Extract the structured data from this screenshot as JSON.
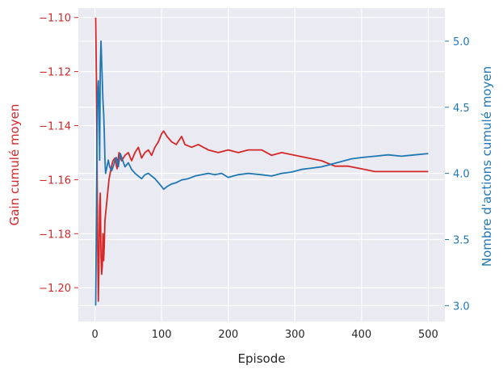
{
  "chart_data": {
    "type": "line",
    "title": "",
    "xlabel": "Episode",
    "ylabel_left": "Gain cumulé moyen",
    "ylabel_right": "Nombre d'actions cumulé moyen",
    "xlim": [
      -25,
      525
    ],
    "ylim_left": [
      -1.2125,
      -1.0965
    ],
    "ylim_right": [
      2.88,
      5.25
    ],
    "grid": true,
    "x_ticks": [
      0,
      100,
      200,
      300,
      400,
      500
    ],
    "x_tick_labels": [
      "0",
      "100",
      "200",
      "300",
      "400",
      "500"
    ],
    "left_ticks": [
      -1.1,
      -1.12,
      -1.14,
      -1.16,
      -1.18,
      -1.2
    ],
    "left_tick_labels": [
      "−1.10",
      "−1.12",
      "−1.14",
      "−1.16",
      "−1.18",
      "−1.20"
    ],
    "right_ticks": [
      3.0,
      3.5,
      4.0,
      4.5,
      5.0
    ],
    "right_tick_labels": [
      "3.0",
      "3.5",
      "4.0",
      "4.5",
      "5.0"
    ],
    "colors": {
      "left_series": "#d62728",
      "right_series": "#1f77b4",
      "plot_bg": "#eaeaf2",
      "grid": "#ffffff",
      "tick_text": "#262626"
    },
    "series": [
      {
        "axis": "left",
        "color": "#d62728",
        "points": [
          [
            1,
            -1.1
          ],
          [
            2,
            -1.12
          ],
          [
            3,
            -1.15
          ],
          [
            4,
            -1.182
          ],
          [
            5,
            -1.205
          ],
          [
            6,
            -1.19
          ],
          [
            7,
            -1.17
          ],
          [
            8,
            -1.165
          ],
          [
            9,
            -1.188
          ],
          [
            10,
            -1.195
          ],
          [
            11,
            -1.192
          ],
          [
            12,
            -1.18
          ],
          [
            13,
            -1.19
          ],
          [
            14,
            -1.184
          ],
          [
            15,
            -1.175
          ],
          [
            17,
            -1.17
          ],
          [
            19,
            -1.165
          ],
          [
            21,
            -1.16
          ],
          [
            24,
            -1.156
          ],
          [
            27,
            -1.153
          ],
          [
            30,
            -1.152
          ],
          [
            33,
            -1.156
          ],
          [
            36,
            -1.15
          ],
          [
            40,
            -1.153
          ],
          [
            45,
            -1.151
          ],
          [
            50,
            -1.15
          ],
          [
            55,
            -1.153
          ],
          [
            60,
            -1.15
          ],
          [
            65,
            -1.148
          ],
          [
            70,
            -1.152
          ],
          [
            75,
            -1.15
          ],
          [
            80,
            -1.149
          ],
          [
            85,
            -1.151
          ],
          [
            90,
            -1.148
          ],
          [
            95,
            -1.146
          ],
          [
            100,
            -1.143
          ],
          [
            103,
            -1.142
          ],
          [
            108,
            -1.144
          ],
          [
            115,
            -1.146
          ],
          [
            122,
            -1.147
          ],
          [
            130,
            -1.144
          ],
          [
            135,
            -1.147
          ],
          [
            145,
            -1.148
          ],
          [
            155,
            -1.147
          ],
          [
            170,
            -1.149
          ],
          [
            185,
            -1.15
          ],
          [
            200,
            -1.149
          ],
          [
            215,
            -1.15
          ],
          [
            230,
            -1.149
          ],
          [
            250,
            -1.149
          ],
          [
            265,
            -1.151
          ],
          [
            280,
            -1.15
          ],
          [
            300,
            -1.151
          ],
          [
            320,
            -1.152
          ],
          [
            340,
            -1.153
          ],
          [
            360,
            -1.155
          ],
          [
            380,
            -1.155
          ],
          [
            400,
            -1.156
          ],
          [
            420,
            -1.157
          ],
          [
            440,
            -1.157
          ],
          [
            460,
            -1.157
          ],
          [
            480,
            -1.157
          ],
          [
            500,
            -1.157
          ]
        ]
      },
      {
        "axis": "right",
        "color": "#1f77b4",
        "points": [
          [
            1,
            3.0
          ],
          [
            2,
            3.6
          ],
          [
            3,
            4.2
          ],
          [
            4,
            4.6
          ],
          [
            5,
            4.7
          ],
          [
            6,
            4.5
          ],
          [
            7,
            4.1
          ],
          [
            8,
            4.8
          ],
          [
            9,
            5.0
          ],
          [
            10,
            4.85
          ],
          [
            11,
            4.7
          ],
          [
            12,
            4.55
          ],
          [
            13,
            4.45
          ],
          [
            14,
            4.3
          ],
          [
            15,
            4.1
          ],
          [
            16,
            4.0
          ],
          [
            18,
            4.05
          ],
          [
            20,
            4.1
          ],
          [
            22,
            4.05
          ],
          [
            25,
            4.02
          ],
          [
            28,
            4.06
          ],
          [
            30,
            4.1
          ],
          [
            32,
            4.12
          ],
          [
            35,
            4.05
          ],
          [
            38,
            4.15
          ],
          [
            40,
            4.12
          ],
          [
            45,
            4.05
          ],
          [
            50,
            4.08
          ],
          [
            55,
            4.03
          ],
          [
            60,
            4.0
          ],
          [
            65,
            3.98
          ],
          [
            70,
            3.96
          ],
          [
            75,
            3.99
          ],
          [
            80,
            4.0
          ],
          [
            85,
            3.98
          ],
          [
            90,
            3.96
          ],
          [
            95,
            3.93
          ],
          [
            100,
            3.9
          ],
          [
            103,
            3.88
          ],
          [
            108,
            3.9
          ],
          [
            115,
            3.92
          ],
          [
            122,
            3.93
          ],
          [
            130,
            3.95
          ],
          [
            140,
            3.96
          ],
          [
            150,
            3.98
          ],
          [
            160,
            3.99
          ],
          [
            170,
            4.0
          ],
          [
            180,
            3.99
          ],
          [
            190,
            4.0
          ],
          [
            200,
            3.97
          ],
          [
            215,
            3.99
          ],
          [
            230,
            4.0
          ],
          [
            250,
            3.99
          ],
          [
            265,
            3.98
          ],
          [
            280,
            4.0
          ],
          [
            295,
            4.01
          ],
          [
            310,
            4.03
          ],
          [
            325,
            4.04
          ],
          [
            340,
            4.05
          ],
          [
            355,
            4.07
          ],
          [
            370,
            4.09
          ],
          [
            385,
            4.11
          ],
          [
            400,
            4.12
          ],
          [
            420,
            4.13
          ],
          [
            440,
            4.14
          ],
          [
            460,
            4.13
          ],
          [
            480,
            4.14
          ],
          [
            500,
            4.15
          ]
        ]
      }
    ]
  }
}
